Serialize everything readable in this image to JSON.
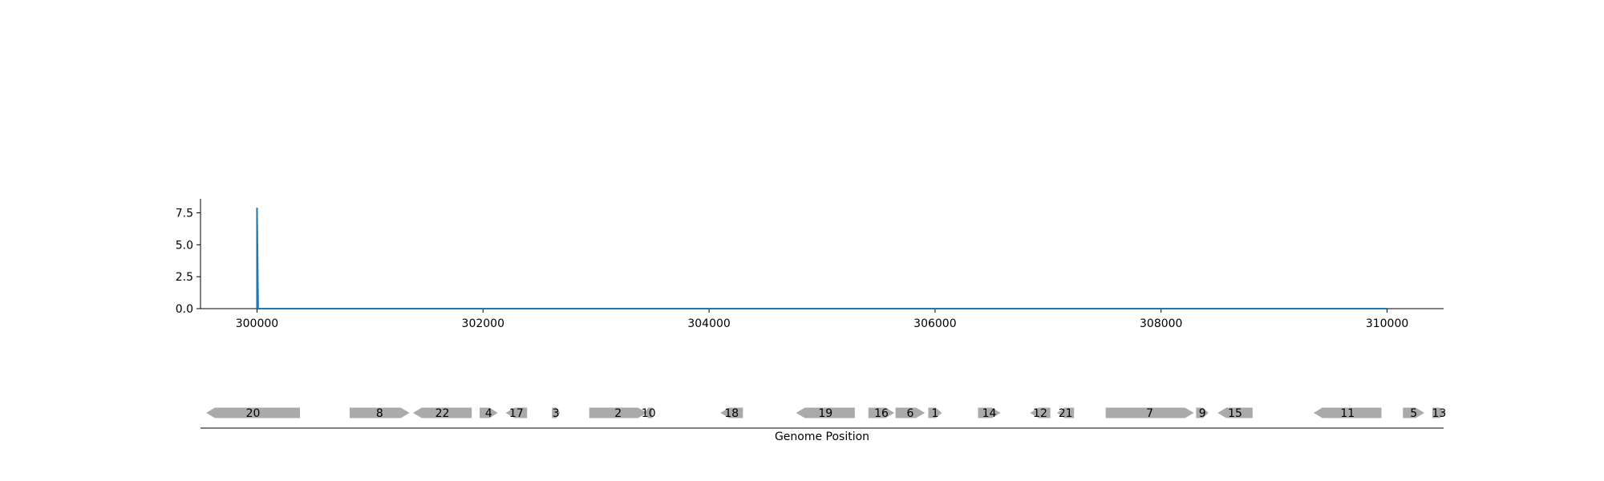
{
  "chart_data": {
    "type": "line",
    "title": "",
    "xlabel": "",
    "ylabel": "",
    "xlim": [
      299500,
      310500
    ],
    "ylim": [
      0,
      8.6
    ],
    "x_ticks": [
      300000,
      302000,
      304000,
      306000,
      308000,
      310000
    ],
    "x_tick_labels": [
      "300000",
      "302000",
      "304000",
      "306000",
      "308000",
      "310000"
    ],
    "y_ticks": [
      0,
      2.5,
      5,
      7.5
    ],
    "y_tick_labels": [
      "0.0",
      "2.5",
      "5.0",
      "7.5"
    ],
    "line_color": "#1f77b4",
    "series": [
      {
        "x": [
          300000,
          300000,
          300010,
          310000
        ],
        "y": [
          0,
          7.9,
          0,
          0
        ]
      }
    ],
    "gene_track": {
      "axis_label": "Genome Position",
      "feature_color": "#aaaaaa",
      "genes": [
        {
          "label": "20",
          "start": 299550,
          "end": 300380,
          "strand": -1
        },
        {
          "label": "8",
          "start": 300820,
          "end": 301350,
          "strand": 1
        },
        {
          "label": "22",
          "start": 301380,
          "end": 301900,
          "strand": -1
        },
        {
          "label": "4",
          "start": 301970,
          "end": 302130,
          "strand": 1
        },
        {
          "label": "17",
          "start": 302200,
          "end": 302390,
          "strand": -1
        },
        {
          "label": "3",
          "start": 302610,
          "end": 302680,
          "strand": 1
        },
        {
          "label": "2",
          "start": 302940,
          "end": 303450,
          "strand": 1
        },
        {
          "label": "10",
          "start": 303430,
          "end": 303500,
          "strand": -1
        },
        {
          "label": "18",
          "start": 304100,
          "end": 304300,
          "strand": -1
        },
        {
          "label": "19",
          "start": 304770,
          "end": 305290,
          "strand": -1
        },
        {
          "label": "16",
          "start": 305410,
          "end": 305640,
          "strand": 1
        },
        {
          "label": "6",
          "start": 305650,
          "end": 305910,
          "strand": 1
        },
        {
          "label": "1",
          "start": 305940,
          "end": 306060,
          "strand": 1
        },
        {
          "label": "14",
          "start": 306380,
          "end": 306580,
          "strand": 1
        },
        {
          "label": "12",
          "start": 306840,
          "end": 307020,
          "strand": -1
        },
        {
          "label": "21",
          "start": 307080,
          "end": 307230,
          "strand": -1
        },
        {
          "label": "7",
          "start": 307510,
          "end": 308290,
          "strand": 1
        },
        {
          "label": "9",
          "start": 308310,
          "end": 308420,
          "strand": 1
        },
        {
          "label": "15",
          "start": 308500,
          "end": 308810,
          "strand": -1
        },
        {
          "label": "11",
          "start": 309350,
          "end": 309950,
          "strand": -1
        },
        {
          "label": "5",
          "start": 310140,
          "end": 310330,
          "strand": 1
        },
        {
          "label": "13",
          "start": 310400,
          "end": 310520,
          "strand": 1
        }
      ]
    }
  }
}
